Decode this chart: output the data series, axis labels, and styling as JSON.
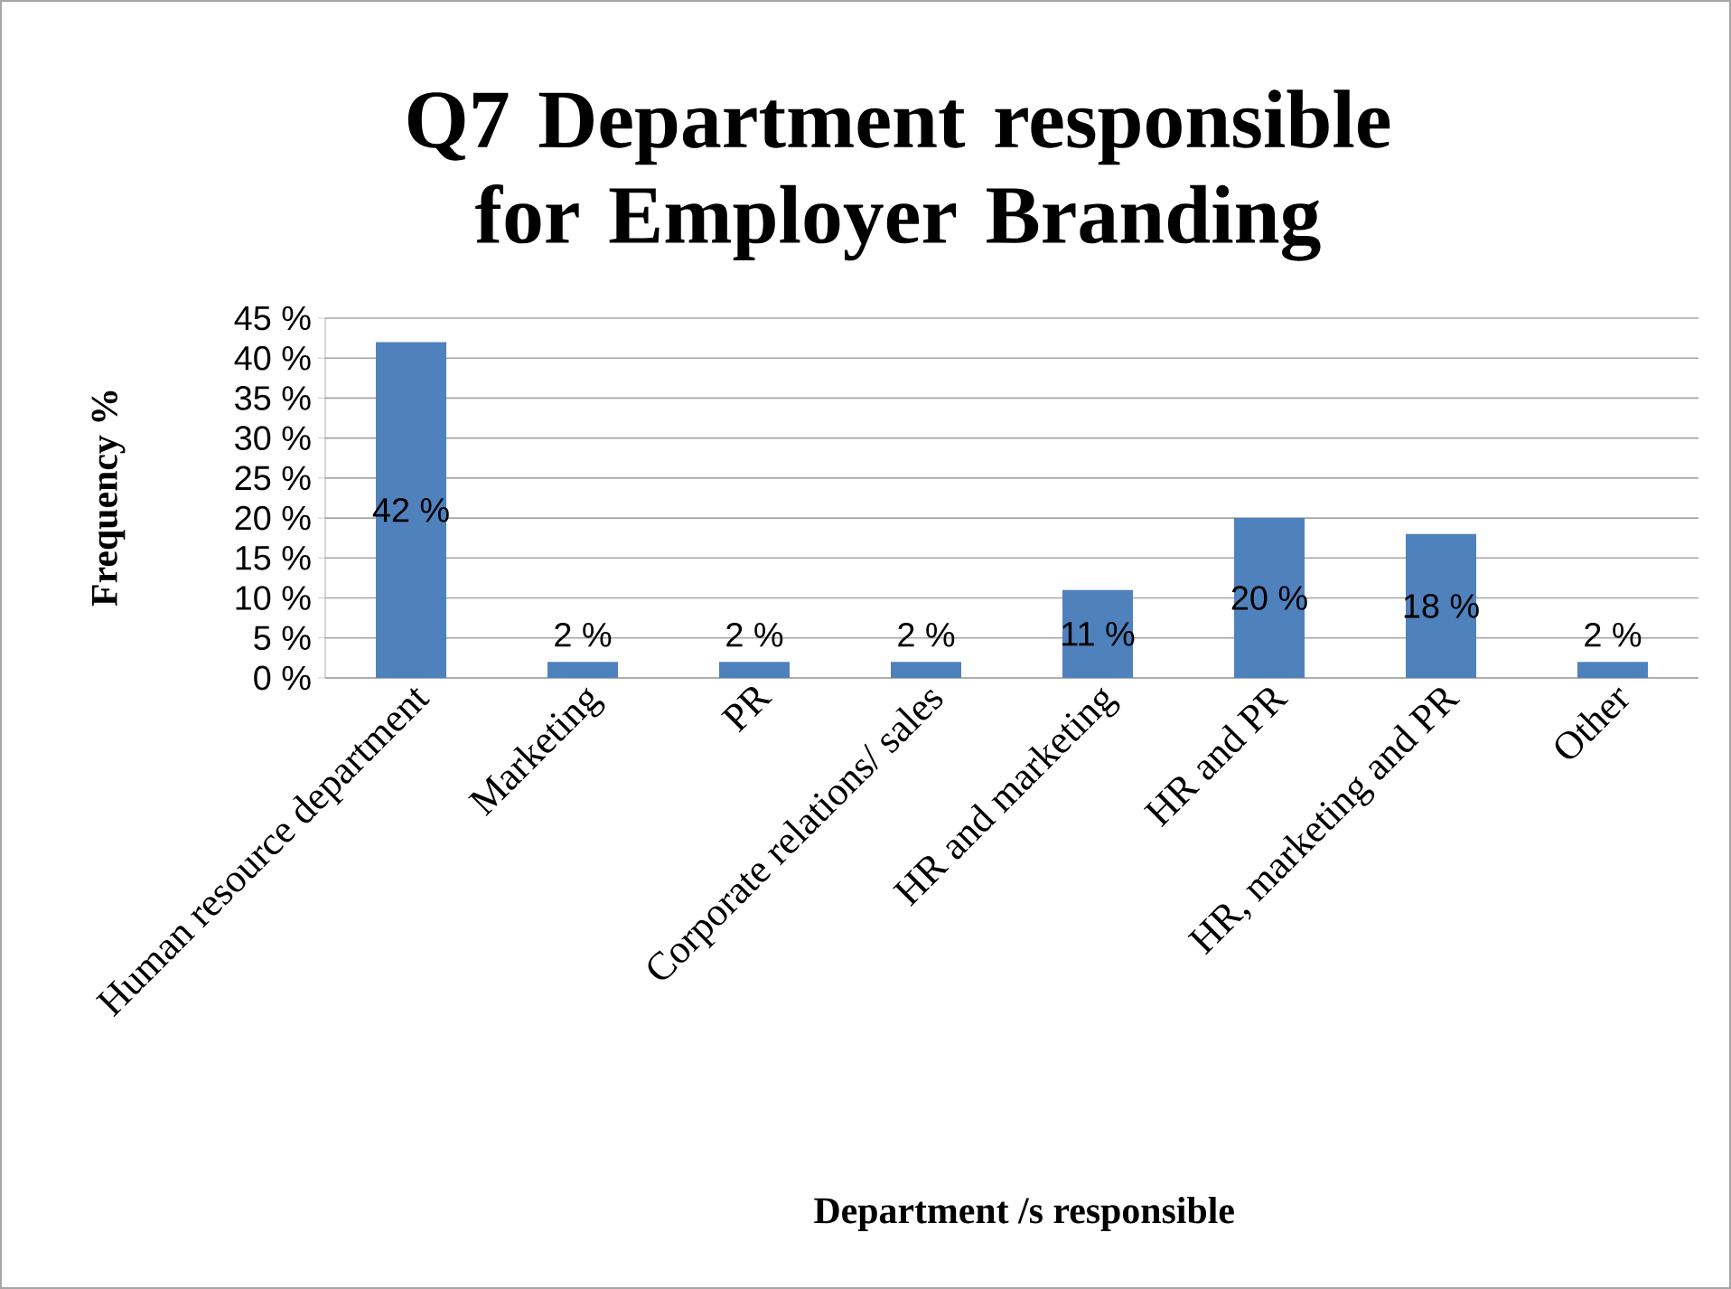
{
  "chart_data": {
    "type": "bar",
    "title": "Q7 Department responsible for Employer Branding",
    "xlabel": "Department /s responsible",
    "ylabel": "Frequency %",
    "categories": [
      "Human resource department",
      "Marketing",
      "PR",
      "Corporate relations/ sales",
      "HR and marketing",
      "HR and PR",
      "HR, marketing and PR",
      "Other"
    ],
    "values": [
      42,
      2,
      2,
      2,
      11,
      20,
      18,
      2
    ],
    "value_labels": [
      "42 %",
      "2 %",
      "2 %",
      "2 %",
      "11 %",
      "20 %",
      "18 %",
      "2 %"
    ],
    "color": "#4f81bd",
    "ylim": [
      0,
      45
    ],
    "yticks": [
      {
        "value": 0,
        "label": "0 %"
      },
      {
        "value": 5,
        "label": "5 %"
      },
      {
        "value": 10,
        "label": "10 %"
      },
      {
        "value": 15,
        "label": "15 %"
      },
      {
        "value": 20,
        "label": "20 %"
      },
      {
        "value": 25,
        "label": "25 %"
      },
      {
        "value": 30,
        "label": "30 %"
      },
      {
        "value": 35,
        "label": "35 %"
      },
      {
        "value": 40,
        "label": "40 %"
      },
      {
        "value": 45,
        "label": "45 %"
      }
    ],
    "grid": "y"
  }
}
